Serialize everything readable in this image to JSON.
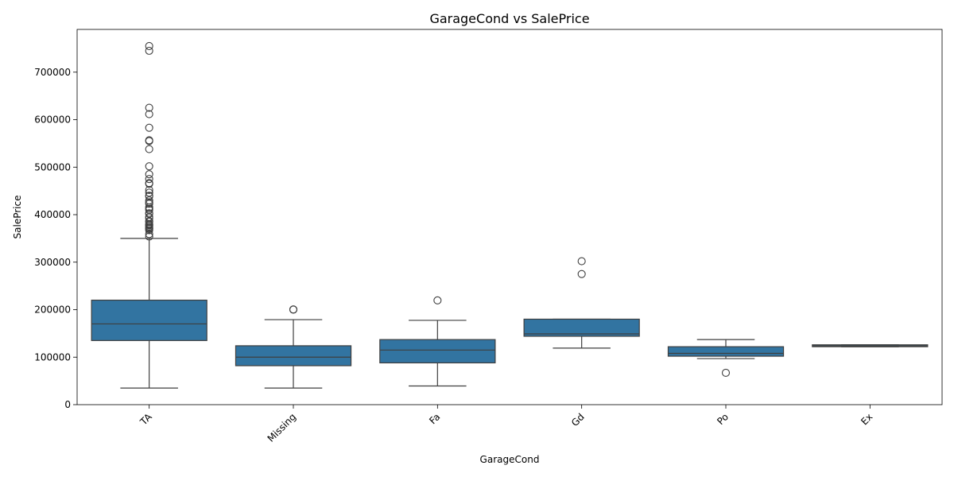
{
  "chart_data": {
    "type": "box",
    "title": "GarageCond vs SalePrice",
    "xlabel": "GarageCond",
    "ylabel": "SalePrice",
    "ylim": [
      0,
      790000
    ],
    "yticks": [
      0,
      100000,
      200000,
      300000,
      400000,
      500000,
      600000,
      700000
    ],
    "box_color": "#3274a1",
    "line_color": "#3f3f3f",
    "categories": [
      "TA",
      "Missing",
      "Fa",
      "Gd",
      "Po",
      "Ex"
    ],
    "boxes": [
      {
        "category": "TA",
        "whisker_low": 34900,
        "q1": 135000,
        "median": 170000,
        "q3": 220000,
        "whisker_high": 350000,
        "outliers": [
          755000,
          745000,
          625000,
          611657,
          582933,
          556581,
          555000,
          538000,
          501837,
          485000,
          475000,
          466500,
          465000,
          451950,
          446261,
          440000,
          438780,
          430000,
          426000,
          423000,
          415298,
          412500,
          410000,
          402861,
          402000,
          395192,
          392500,
          386250,
          385000,
          380000,
          378500,
          377500,
          375000,
          372500,
          370878,
          369900,
          367294,
          359100,
          354000
        ]
      },
      {
        "category": "Missing",
        "whisker_low": 34900,
        "q1": 82000,
        "median": 100000,
        "q3": 124000,
        "whisker_high": 179000,
        "outliers": [
          200500,
          200000
        ]
      },
      {
        "category": "Fa",
        "whisker_low": 39300,
        "q1": 88000,
        "median": 115000,
        "q3": 137000,
        "whisker_high": 177500,
        "outliers": [
          219500
        ]
      },
      {
        "category": "Gd",
        "whisker_low": 119000,
        "q1": 144000,
        "median": 149000,
        "q3": 180000,
        "whisker_high": 180000,
        "outliers": [
          302000,
          275000
        ]
      },
      {
        "category": "Po",
        "whisker_low": 97000,
        "q1": 102000,
        "median": 108000,
        "q3": 122000,
        "whisker_high": 137000,
        "outliers": [
          67000
        ]
      },
      {
        "category": "Ex",
        "whisker_low": 122000,
        "q1": 122000,
        "median": 124000,
        "q3": 126000,
        "whisker_high": 126000,
        "outliers": []
      }
    ]
  }
}
